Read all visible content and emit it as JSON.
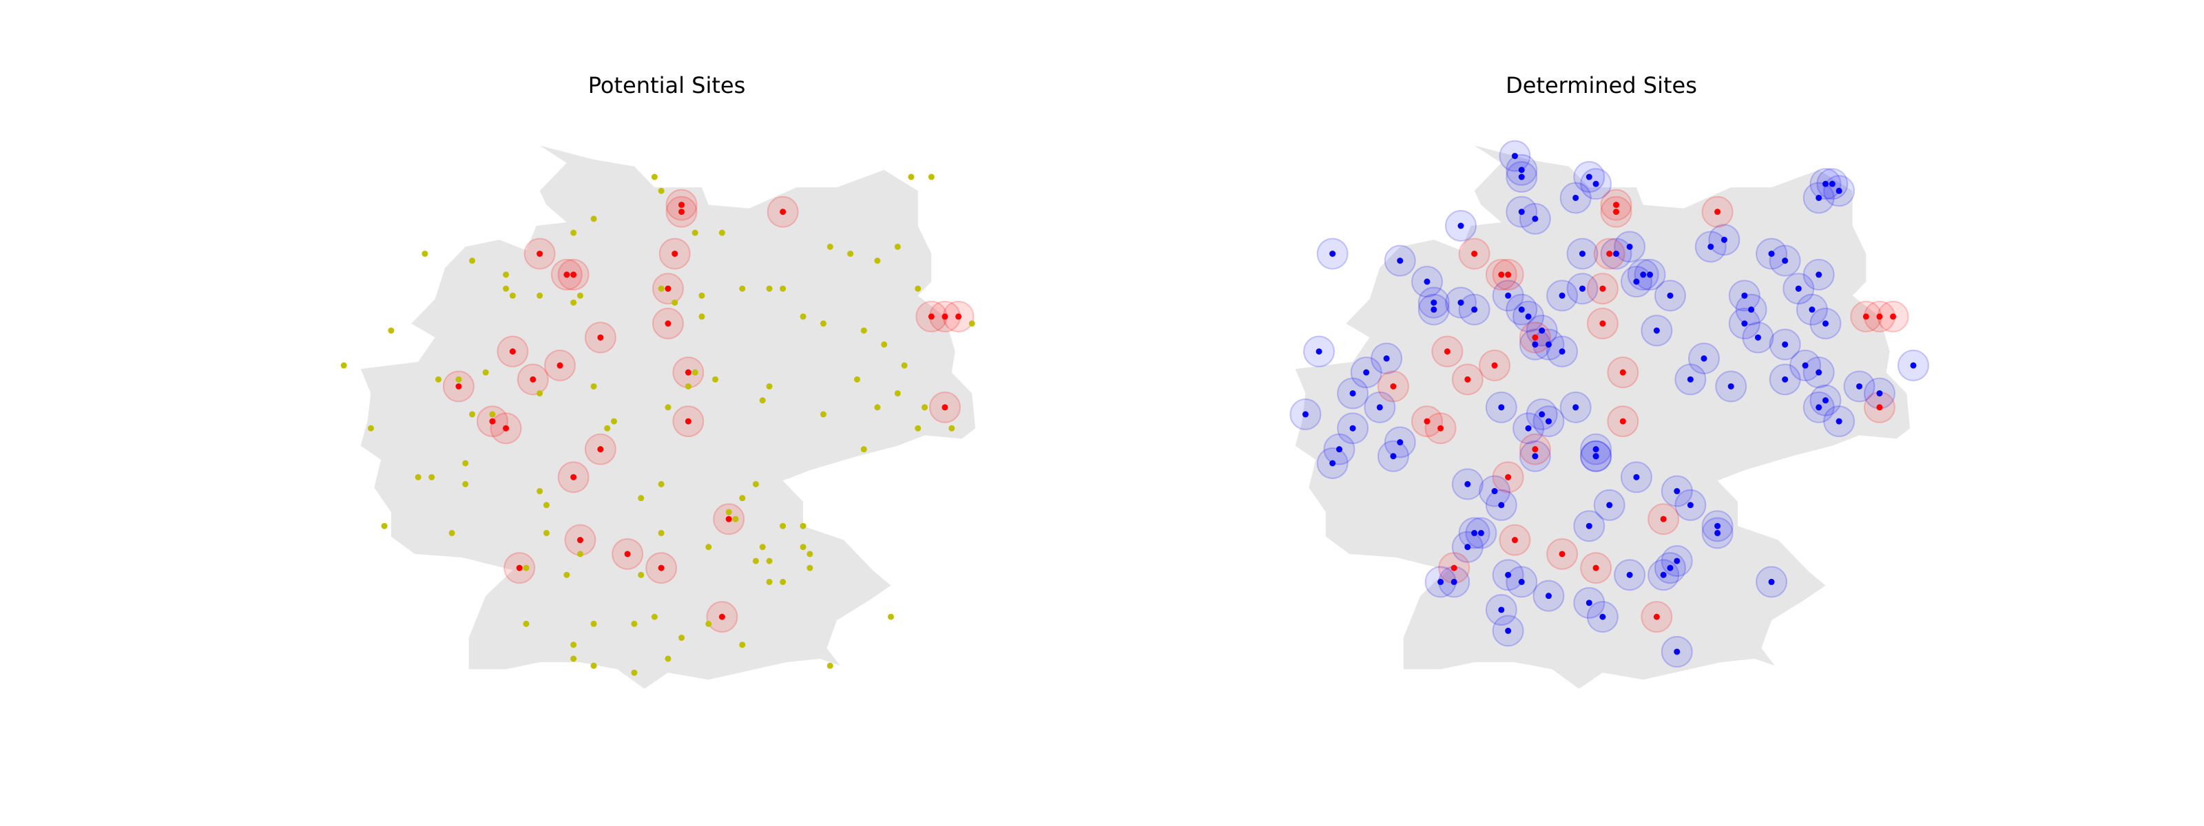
{
  "figure": {
    "background": "#ffffff",
    "map_fill": "#e6e6e6"
  },
  "chart_data": [
    {
      "type": "scatter",
      "title": "Potential Sites",
      "xlabel": "",
      "ylabel": "",
      "axis": "off",
      "grid": false,
      "xlim": [
        5.3,
        15.6
      ],
      "ylim": [
        47.0,
        55.3
      ],
      "colors": {
        "candidate": "#bfbf00",
        "existing": "#ff0000",
        "existing_halo": "#ff0000"
      },
      "series": [
        {
          "kind": "candidate",
          "points": [
            [
              10.3,
              54.6
            ],
            [
              10.4,
              54.4
            ],
            [
              9.4,
              54.0
            ],
            [
              9.1,
              53.8
            ],
            [
              10.9,
              53.8
            ],
            [
              11.3,
              53.8
            ],
            [
              12.9,
              53.6
            ],
            [
              13.2,
              53.5
            ],
            [
              14.4,
              54.6
            ],
            [
              14.1,
              54.6
            ],
            [
              13.9,
              53.6
            ],
            [
              13.6,
              53.4
            ],
            [
              6.9,
              53.5
            ],
            [
              7.6,
              53.4
            ],
            [
              8.1,
              53.2
            ],
            [
              8.1,
              53.0
            ],
            [
              8.2,
              52.9
            ],
            [
              8.6,
              52.9
            ],
            [
              9.1,
              52.8
            ],
            [
              9.2,
              52.9
            ],
            [
              10.4,
              53.0
            ],
            [
              10.6,
              52.8
            ],
            [
              11.0,
              52.6
            ],
            [
              11.0,
              52.9
            ],
            [
              11.6,
              53.0
            ],
            [
              12.0,
              53.0
            ],
            [
              12.2,
              53.0
            ],
            [
              12.5,
              52.6
            ],
            [
              12.8,
              52.5
            ],
            [
              13.4,
              52.4
            ],
            [
              13.7,
              52.2
            ],
            [
              15.0,
              52.5
            ],
            [
              14.2,
              53.0
            ],
            [
              5.7,
              51.9
            ],
            [
              6.4,
              52.4
            ],
            [
              7.1,
              51.7
            ],
            [
              7.4,
              51.7
            ],
            [
              7.8,
              51.8
            ],
            [
              7.9,
              51.2
            ],
            [
              7.6,
              51.2
            ],
            [
              8.6,
              51.5
            ],
            [
              9.4,
              51.6
            ],
            [
              9.6,
              51.0
            ],
            [
              9.7,
              51.1
            ],
            [
              9.5,
              50.7
            ],
            [
              10.8,
              51.6
            ],
            [
              10.9,
              51.8
            ],
            [
              11.2,
              51.7
            ],
            [
              10.5,
              51.3
            ],
            [
              11.9,
              51.4
            ],
            [
              12.0,
              51.6
            ],
            [
              12.8,
              51.2
            ],
            [
              13.6,
              51.3
            ],
            [
              14.0,
              51.9
            ],
            [
              14.3,
              51.3
            ],
            [
              13.9,
              51.5
            ],
            [
              13.3,
              51.7
            ],
            [
              14.2,
              51.0
            ],
            [
              14.7,
              51.0
            ],
            [
              13.4,
              50.7
            ],
            [
              6.1,
              51.0
            ],
            [
              7.5,
              50.5
            ],
            [
              7.0,
              50.3
            ],
            [
              6.8,
              50.3
            ],
            [
              7.5,
              50.2
            ],
            [
              8.6,
              50.1
            ],
            [
              8.7,
              49.9
            ],
            [
              10.1,
              50.0
            ],
            [
              10.4,
              50.2
            ],
            [
              11.6,
              50.0
            ],
            [
              11.8,
              50.2
            ],
            [
              11.4,
              49.8
            ],
            [
              11.5,
              49.7
            ],
            [
              6.3,
              49.6
            ],
            [
              7.3,
              49.5
            ],
            [
              8.7,
              49.5
            ],
            [
              9.2,
              49.2
            ],
            [
              9.0,
              48.9
            ],
            [
              8.4,
              49.0
            ],
            [
              10.1,
              48.9
            ],
            [
              10.4,
              49.5
            ],
            [
              11.1,
              49.3
            ],
            [
              11.9,
              49.3
            ],
            [
              11.8,
              49.1
            ],
            [
              12.0,
              49.1
            ],
            [
              12.5,
              49.6
            ],
            [
              12.2,
              49.6
            ],
            [
              12.5,
              49.3
            ],
            [
              12.6,
              49.2
            ],
            [
              12.6,
              49.0
            ],
            [
              12.0,
              48.8
            ],
            [
              12.2,
              48.8
            ],
            [
              13.8,
              48.3
            ],
            [
              8.4,
              48.2
            ],
            [
              9.4,
              48.2
            ],
            [
              10.0,
              48.2
            ],
            [
              10.3,
              48.3
            ],
            [
              11.1,
              48.2
            ],
            [
              9.1,
              47.7
            ],
            [
              9.1,
              47.9
            ],
            [
              10.7,
              48.0
            ],
            [
              9.4,
              47.6
            ],
            [
              10.0,
              47.5
            ],
            [
              10.5,
              47.7
            ],
            [
              11.6,
              47.9
            ],
            [
              12.9,
              47.6
            ]
          ]
        },
        {
          "kind": "existing",
          "points": [
            [
              10.7,
              54.2
            ],
            [
              10.7,
              54.1
            ],
            [
              12.2,
              54.1
            ],
            [
              8.6,
              53.5
            ],
            [
              9.0,
              53.2
            ],
            [
              9.1,
              53.2
            ],
            [
              10.6,
              53.5
            ],
            [
              10.5,
              53.0
            ],
            [
              8.5,
              51.7
            ],
            [
              10.5,
              52.5
            ],
            [
              14.4,
              52.6
            ],
            [
              14.6,
              52.6
            ],
            [
              14.8,
              52.6
            ],
            [
              9.5,
              52.3
            ],
            [
              8.9,
              51.9
            ],
            [
              8.2,
              52.1
            ],
            [
              10.8,
              51.8
            ],
            [
              7.4,
              51.6
            ],
            [
              7.9,
              51.1
            ],
            [
              8.1,
              51.0
            ],
            [
              10.8,
              51.1
            ],
            [
              9.5,
              50.7
            ],
            [
              9.1,
              50.3
            ],
            [
              11.4,
              49.7
            ],
            [
              9.2,
              49.4
            ],
            [
              8.3,
              49.0
            ],
            [
              9.9,
              49.2
            ],
            [
              10.4,
              49.0
            ],
            [
              11.3,
              48.3
            ],
            [
              14.6,
              51.3
            ]
          ]
        }
      ]
    },
    {
      "type": "scatter",
      "title": "Determined Sites",
      "xlabel": "",
      "ylabel": "",
      "axis": "off",
      "grid": false,
      "xlim": [
        5.3,
        15.6
      ],
      "ylim": [
        47.0,
        55.3
      ],
      "colors": {
        "selected": "#0000ff",
        "selected_halo": "#0000ff",
        "existing": "#ff0000",
        "existing_halo": "#ff0000"
      },
      "series": [
        {
          "kind": "selected",
          "points": [
            [
              9.2,
              54.9
            ],
            [
              9.3,
              54.6
            ],
            [
              9.3,
              54.7
            ],
            [
              9.3,
              54.1
            ],
            [
              9.5,
              54.0
            ],
            [
              10.3,
              54.6
            ],
            [
              10.4,
              54.5
            ],
            [
              10.1,
              54.3
            ],
            [
              13.8,
              54.5
            ],
            [
              13.9,
              54.5
            ],
            [
              14.0,
              54.4
            ],
            [
              13.7,
              54.3
            ],
            [
              6.5,
              53.5
            ],
            [
              7.5,
              53.4
            ],
            [
              8.4,
              53.9
            ],
            [
              7.9,
              53.1
            ],
            [
              8.0,
              52.8
            ],
            [
              8.0,
              52.7
            ],
            [
              8.4,
              52.8
            ],
            [
              8.6,
              52.7
            ],
            [
              9.1,
              52.9
            ],
            [
              9.3,
              52.7
            ],
            [
              9.4,
              52.6
            ],
            [
              9.6,
              52.4
            ],
            [
              9.7,
              52.2
            ],
            [
              9.5,
              52.2
            ],
            [
              9.9,
              52.1
            ],
            [
              9.9,
              52.9
            ],
            [
              10.2,
              53.0
            ],
            [
              10.2,
              53.5
            ],
            [
              10.7,
              53.5
            ],
            [
              10.9,
              53.6
            ],
            [
              11.2,
              53.2
            ],
            [
              11.5,
              52.9
            ],
            [
              11.3,
              52.4
            ],
            [
              11.0,
              53.1
            ],
            [
              11.1,
              53.2
            ],
            [
              12.1,
              53.6
            ],
            [
              12.3,
              53.7
            ],
            [
              13.0,
              53.5
            ],
            [
              13.2,
              53.4
            ],
            [
              13.4,
              53.0
            ],
            [
              13.7,
              53.2
            ],
            [
              13.6,
              52.7
            ],
            [
              13.8,
              52.5
            ],
            [
              12.6,
              52.5
            ],
            [
              12.7,
              52.7
            ],
            [
              12.6,
              52.9
            ],
            [
              12.8,
              52.3
            ],
            [
              13.2,
              52.2
            ],
            [
              12.0,
              52.0
            ],
            [
              11.8,
              51.7
            ],
            [
              12.4,
              51.6
            ],
            [
              13.5,
              51.9
            ],
            [
              13.7,
              51.8
            ],
            [
              13.2,
              51.7
            ],
            [
              14.3,
              51.6
            ],
            [
              13.8,
              51.4
            ],
            [
              14.0,
              51.1
            ],
            [
              13.7,
              51.3
            ],
            [
              15.1,
              51.9
            ],
            [
              14.6,
              51.5
            ],
            [
              6.3,
              52.1
            ],
            [
              6.1,
              51.2
            ],
            [
              6.8,
              51.5
            ],
            [
              7.3,
              52.0
            ],
            [
              7.0,
              51.8
            ],
            [
              7.2,
              51.3
            ],
            [
              7.5,
              50.8
            ],
            [
              7.4,
              50.6
            ],
            [
              6.6,
              50.7
            ],
            [
              6.8,
              51.0
            ],
            [
              6.5,
              50.5
            ],
            [
              9.0,
              51.3
            ],
            [
              9.6,
              51.2
            ],
            [
              9.7,
              51.1
            ],
            [
              9.4,
              51.0
            ],
            [
              9.5,
              50.6
            ],
            [
              10.1,
              51.3
            ],
            [
              8.5,
              50.2
            ],
            [
              8.9,
              50.1
            ],
            [
              9.0,
              49.9
            ],
            [
              10.4,
              50.6
            ],
            [
              10.4,
              50.6
            ],
            [
              10.4,
              50.7
            ],
            [
              10.6,
              49.9
            ],
            [
              11.0,
              50.3
            ],
            [
              11.6,
              50.1
            ],
            [
              11.8,
              49.9
            ],
            [
              12.2,
              49.6
            ],
            [
              12.2,
              49.5
            ],
            [
              10.3,
              49.6
            ],
            [
              8.5,
              49.3
            ],
            [
              8.7,
              49.5
            ],
            [
              10.9,
              48.9
            ],
            [
              11.4,
              48.9
            ],
            [
              11.5,
              49.0
            ],
            [
              11.6,
              49.1
            ],
            [
              8.1,
              48.8
            ],
            [
              8.3,
              48.8
            ],
            [
              9.1,
              48.9
            ],
            [
              9.3,
              48.8
            ],
            [
              8.6,
              49.5
            ],
            [
              9.7,
              48.6
            ],
            [
              10.3,
              48.5
            ],
            [
              10.5,
              48.3
            ],
            [
              9.0,
              48.4
            ],
            [
              9.1,
              48.1
            ],
            [
              11.6,
              47.8
            ],
            [
              13.0,
              48.8
            ]
          ]
        },
        {
          "kind": "existing",
          "points": [
            [
              10.7,
              54.2
            ],
            [
              10.7,
              54.1
            ],
            [
              12.2,
              54.1
            ],
            [
              8.6,
              53.5
            ],
            [
              9.0,
              53.2
            ],
            [
              9.1,
              53.2
            ],
            [
              10.6,
              53.5
            ],
            [
              10.5,
              53.0
            ],
            [
              8.5,
              51.7
            ],
            [
              10.5,
              52.5
            ],
            [
              14.4,
              52.6
            ],
            [
              14.6,
              52.6
            ],
            [
              14.8,
              52.6
            ],
            [
              9.5,
              52.3
            ],
            [
              8.9,
              51.9
            ],
            [
              8.2,
              52.1
            ],
            [
              10.8,
              51.8
            ],
            [
              7.4,
              51.6
            ],
            [
              7.9,
              51.1
            ],
            [
              8.1,
              51.0
            ],
            [
              10.8,
              51.1
            ],
            [
              9.5,
              50.7
            ],
            [
              9.1,
              50.3
            ],
            [
              11.4,
              49.7
            ],
            [
              9.2,
              49.4
            ],
            [
              8.3,
              49.0
            ],
            [
              9.9,
              49.2
            ],
            [
              10.4,
              49.0
            ],
            [
              11.3,
              48.3
            ],
            [
              14.6,
              51.3
            ]
          ]
        }
      ]
    }
  ]
}
